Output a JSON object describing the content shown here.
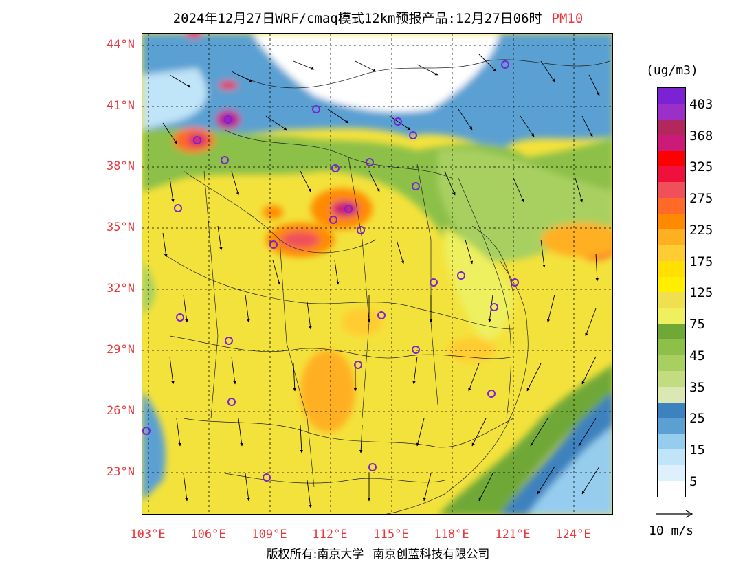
{
  "title": {
    "text": "2024年12月27日WRF/cmaq模式12km预报产品:12月27日06时",
    "variable": "PM10"
  },
  "latitude_labels": [
    "44°N",
    "41°N",
    "38°N",
    "35°N",
    "32°N",
    "29°N",
    "26°N",
    "23°N"
  ],
  "longitude_labels": [
    "103°E",
    "106°E",
    "109°E",
    "112°E",
    "115°E",
    "118°E",
    "121°E",
    "124°E"
  ],
  "colorbar": {
    "unit": "(ug/m3)",
    "labels": [
      "403",
      "368",
      "325",
      "275",
      "225",
      "175",
      "125",
      "75",
      "45",
      "35",
      "25",
      "15",
      "5"
    ],
    "colors": [
      "#7a22d4",
      "#9b30c8",
      "#b2285c",
      "#cc1a78",
      "#ff0000",
      "#f0103c",
      "#f0505a",
      "#ff6a28",
      "#ff8a00",
      "#ffb020",
      "#ffcc33",
      "#ffe000",
      "#ffee00",
      "#f0e050",
      "#eef060",
      "#70a838",
      "#8cc048",
      "#a8d060",
      "#c4dc80",
      "#dce8b4",
      "#3c82be",
      "#5aa0d2",
      "#96cdef",
      "#c0e4f8",
      "#ddf0fc",
      "#ffffff"
    ]
  },
  "wind_reference": {
    "label": "10 m/s"
  },
  "footer": {
    "copyright": "版权所有:南京大学",
    "company": "南京创蓝科技有限公司"
  }
}
